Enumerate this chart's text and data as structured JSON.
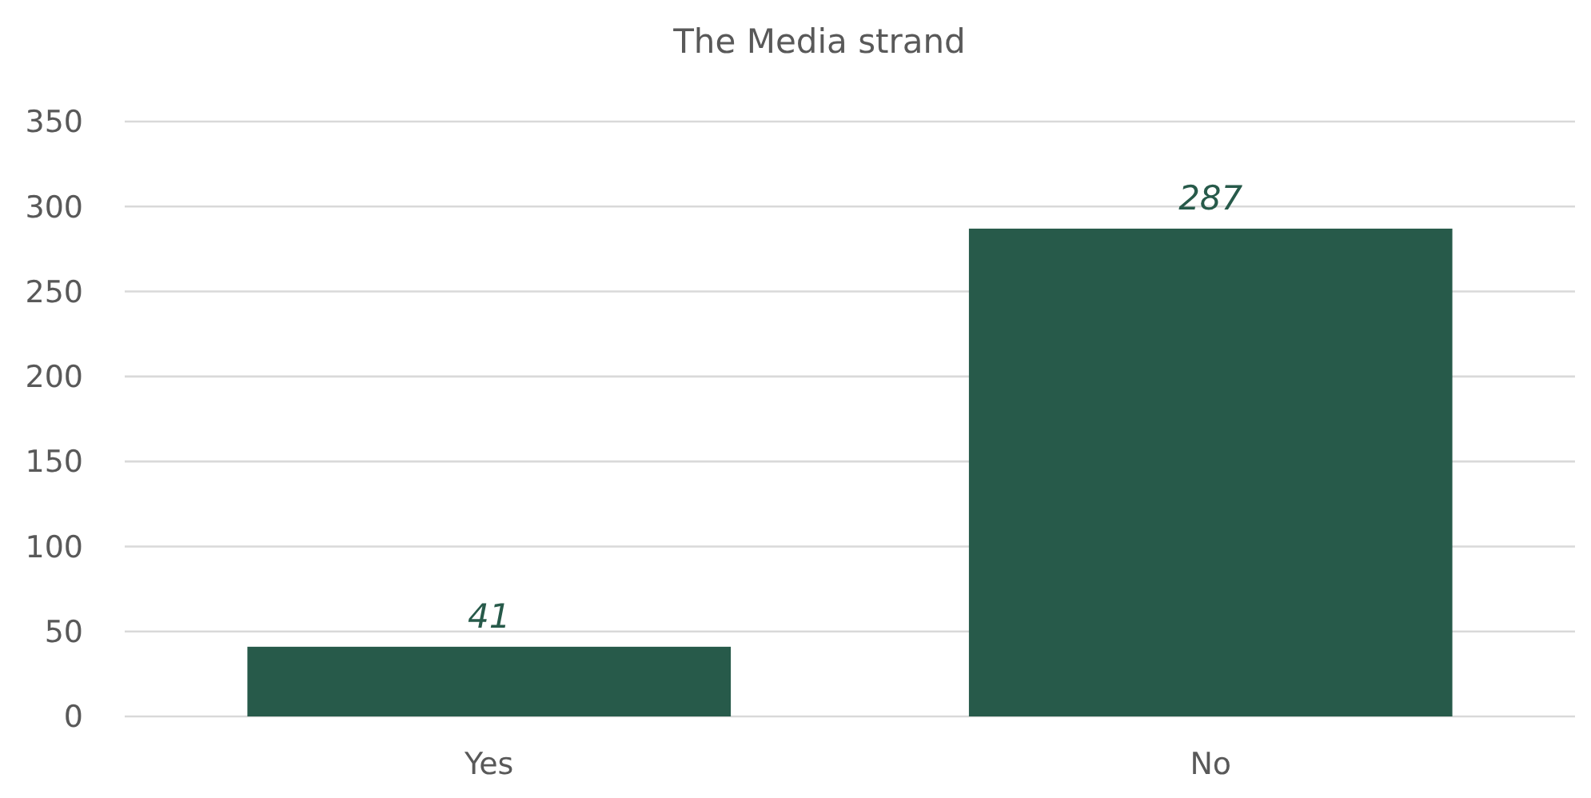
{
  "chart_data": {
    "type": "bar",
    "title": "The Media strand",
    "categories": [
      "Yes",
      "No"
    ],
    "values": [
      41,
      287
    ],
    "color": "#275a4a",
    "ylim": [
      0,
      350
    ],
    "yticks": [
      0,
      50,
      100,
      150,
      200,
      250,
      300,
      350
    ],
    "grid": true,
    "data_labels": true
  }
}
